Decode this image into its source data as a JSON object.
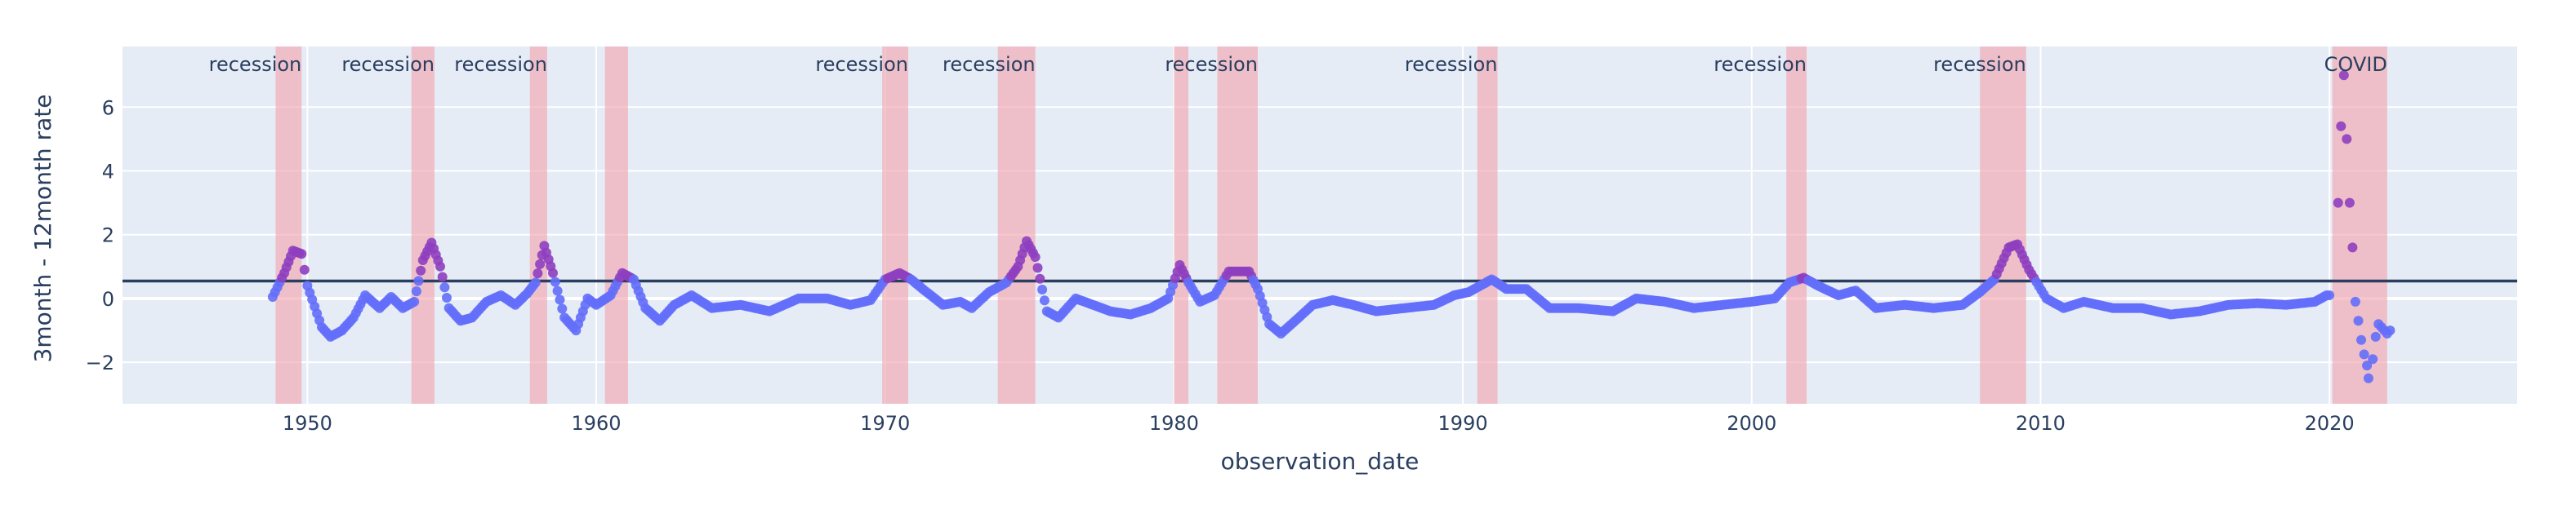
{
  "chart_data": {
    "type": "scatter",
    "xlabel": "observation_date",
    "ylabel": "3month - 12month rate",
    "xlim": [
      1943.6,
      2026.5
    ],
    "ylim": [
      -3.3,
      7.9
    ],
    "x_ticks": [
      1950,
      1960,
      1970,
      1980,
      1990,
      2000,
      2010,
      2020
    ],
    "y_ticks": [
      -2,
      0,
      2,
      4,
      6
    ],
    "grid": true,
    "hline": 0.55,
    "colors": {
      "plot_bg": "#E5ECF6",
      "grid": "#FFFFFF",
      "marker_low": "#636EFA",
      "marker_high": "#8E3FBF",
      "band": "#F2A7B0",
      "hline": "#2A3F5F",
      "text": "#2A3F5F"
    },
    "bands": [
      {
        "start": 1948.9,
        "end": 1949.8,
        "label": "recession"
      },
      {
        "start": 1953.6,
        "end": 1954.4,
        "label": "recession"
      },
      {
        "start": 1957.7,
        "end": 1958.3,
        "label": "recession"
      },
      {
        "start": 1960.3,
        "end": 1961.1,
        "label": ""
      },
      {
        "start": 1969.9,
        "end": 1970.8,
        "label": "recession"
      },
      {
        "start": 1973.9,
        "end": 1975.2,
        "label": "recession"
      },
      {
        "start": 1980.0,
        "end": 1980.5,
        "label": ""
      },
      {
        "start": 1981.5,
        "end": 1982.9,
        "label": "recession"
      },
      {
        "start": 1990.5,
        "end": 1991.2,
        "label": "recession"
      },
      {
        "start": 2001.2,
        "end": 2001.9,
        "label": "recession"
      },
      {
        "start": 2007.9,
        "end": 2009.5,
        "label": "recession"
      },
      {
        "start": 2020.1,
        "end": 2022.0,
        "label": "COVID"
      }
    ],
    "series_knots": [
      [
        1948.8,
        0.05
      ],
      [
        1949.2,
        0.8
      ],
      [
        1949.5,
        1.5
      ],
      [
        1949.8,
        1.4
      ],
      [
        1950.0,
        0.4
      ],
      [
        1950.5,
        -0.9
      ],
      [
        1950.8,
        -1.2
      ],
      [
        1951.2,
        -1.0
      ],
      [
        1951.6,
        -0.6
      ],
      [
        1952.0,
        0.1
      ],
      [
        1952.5,
        -0.3
      ],
      [
        1952.9,
        0.05
      ],
      [
        1953.3,
        -0.3
      ],
      [
        1953.7,
        -0.1
      ],
      [
        1954.0,
        1.2
      ],
      [
        1954.3,
        1.75
      ],
      [
        1954.6,
        1.0
      ],
      [
        1954.9,
        -0.3
      ],
      [
        1955.3,
        -0.7
      ],
      [
        1955.7,
        -0.6
      ],
      [
        1956.2,
        -0.1
      ],
      [
        1956.7,
        0.1
      ],
      [
        1957.2,
        -0.2
      ],
      [
        1957.6,
        0.15
      ],
      [
        1957.9,
        0.5
      ],
      [
        1958.2,
        1.65
      ],
      [
        1958.5,
        0.8
      ],
      [
        1958.9,
        -0.6
      ],
      [
        1959.3,
        -1.0
      ],
      [
        1959.7,
        0.0
      ],
      [
        1960.0,
        -0.2
      ],
      [
        1960.5,
        0.1
      ],
      [
        1960.9,
        0.8
      ],
      [
        1961.3,
        0.6
      ],
      [
        1961.7,
        -0.3
      ],
      [
        1962.2,
        -0.7
      ],
      [
        1962.7,
        -0.2
      ],
      [
        1963.3,
        0.1
      ],
      [
        1964.0,
        -0.3
      ],
      [
        1965.0,
        -0.2
      ],
      [
        1966.0,
        -0.4
      ],
      [
        1967.0,
        0.0
      ],
      [
        1968.0,
        0.0
      ],
      [
        1968.8,
        -0.2
      ],
      [
        1969.5,
        -0.05
      ],
      [
        1970.0,
        0.6
      ],
      [
        1970.5,
        0.8
      ],
      [
        1970.9,
        0.6
      ],
      [
        1971.3,
        0.3
      ],
      [
        1972.0,
        -0.2
      ],
      [
        1972.6,
        -0.1
      ],
      [
        1973.0,
        -0.3
      ],
      [
        1973.6,
        0.2
      ],
      [
        1974.2,
        0.5
      ],
      [
        1974.6,
        1.0
      ],
      [
        1974.9,
        1.8
      ],
      [
        1975.2,
        1.3
      ],
      [
        1975.6,
        -0.4
      ],
      [
        1976.0,
        -0.6
      ],
      [
        1976.6,
        0.0
      ],
      [
        1977.2,
        -0.2
      ],
      [
        1977.8,
        -0.4
      ],
      [
        1978.5,
        -0.5
      ],
      [
        1979.2,
        -0.3
      ],
      [
        1979.8,
        0.0
      ],
      [
        1980.2,
        1.05
      ],
      [
        1980.5,
        0.5
      ],
      [
        1980.9,
        -0.1
      ],
      [
        1981.4,
        0.1
      ],
      [
        1981.9,
        0.85
      ],
      [
        1982.6,
        0.85
      ],
      [
        1982.9,
        0.3
      ],
      [
        1983.3,
        -0.8
      ],
      [
        1983.7,
        -1.1
      ],
      [
        1984.2,
        -0.7
      ],
      [
        1984.8,
        -0.2
      ],
      [
        1985.5,
        -0.05
      ],
      [
        1986.2,
        -0.2
      ],
      [
        1987.0,
        -0.4
      ],
      [
        1988.0,
        -0.3
      ],
      [
        1989.0,
        -0.2
      ],
      [
        1989.7,
        0.1
      ],
      [
        1990.2,
        0.2
      ],
      [
        1990.6,
        0.4
      ],
      [
        1991.0,
        0.6
      ],
      [
        1991.5,
        0.3
      ],
      [
        1992.2,
        0.3
      ],
      [
        1993.0,
        -0.3
      ],
      [
        1994.0,
        -0.3
      ],
      [
        1995.2,
        -0.4
      ],
      [
        1996.0,
        0.0
      ],
      [
        1997.0,
        -0.1
      ],
      [
        1998.0,
        -0.3
      ],
      [
        1999.0,
        -0.2
      ],
      [
        2000.0,
        -0.1
      ],
      [
        2000.8,
        0.0
      ],
      [
        2001.3,
        0.5
      ],
      [
        2001.8,
        0.65
      ],
      [
        2002.3,
        0.4
      ],
      [
        2003.0,
        0.1
      ],
      [
        2003.6,
        0.25
      ],
      [
        2004.3,
        -0.3
      ],
      [
        2005.3,
        -0.2
      ],
      [
        2006.3,
        -0.3
      ],
      [
        2007.3,
        -0.2
      ],
      [
        2007.9,
        0.2
      ],
      [
        2008.4,
        0.6
      ],
      [
        2008.9,
        1.6
      ],
      [
        2009.2,
        1.7
      ],
      [
        2009.6,
        0.9
      ],
      [
        2010.2,
        0.0
      ],
      [
        2010.8,
        -0.3
      ],
      [
        2011.5,
        -0.1
      ],
      [
        2012.5,
        -0.3
      ],
      [
        2013.5,
        -0.3
      ],
      [
        2014.5,
        -0.5
      ],
      [
        2015.5,
        -0.4
      ],
      [
        2016.5,
        -0.2
      ],
      [
        2017.5,
        -0.15
      ],
      [
        2018.5,
        -0.2
      ],
      [
        2019.5,
        -0.1
      ],
      [
        2019.9,
        0.1
      ]
    ],
    "covid_points": [
      [
        2020.0,
        0.1
      ],
      [
        2020.3,
        3.0
      ],
      [
        2020.5,
        7.0
      ],
      [
        2020.4,
        5.4
      ],
      [
        2020.6,
        5.0
      ],
      [
        2020.7,
        3.0
      ],
      [
        2020.8,
        1.6
      ],
      [
        2020.9,
        -0.1
      ],
      [
        2021.0,
        -0.7
      ],
      [
        2021.1,
        -1.3
      ],
      [
        2021.2,
        -1.75
      ],
      [
        2021.3,
        -2.1
      ],
      [
        2021.35,
        -2.5
      ],
      [
        2021.5,
        -1.9
      ],
      [
        2021.6,
        -1.2
      ],
      [
        2021.7,
        -0.8
      ],
      [
        2021.8,
        -0.9
      ],
      [
        2021.9,
        -1.0
      ],
      [
        2022.0,
        -1.1
      ],
      [
        2022.1,
        -1.0
      ]
    ]
  }
}
